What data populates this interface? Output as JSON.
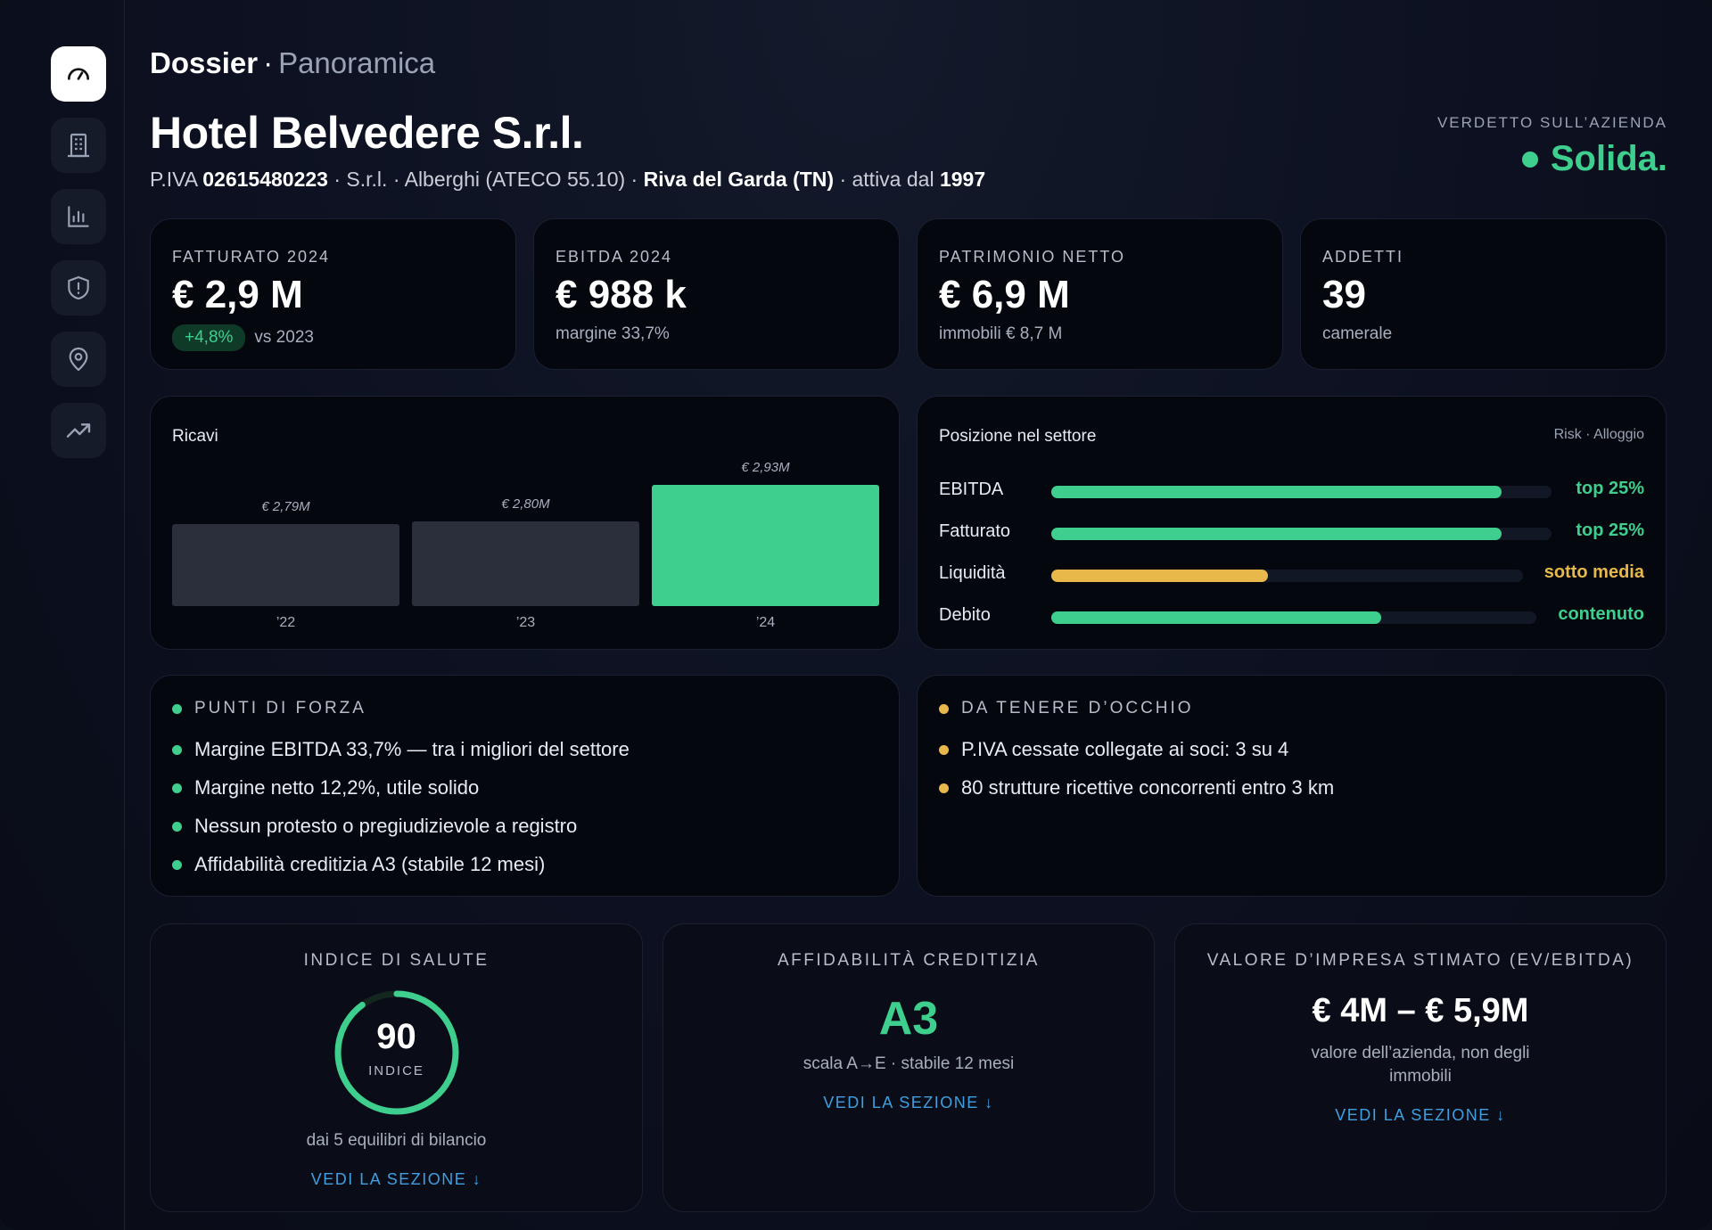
{
  "sidebar": {
    "items": [
      {
        "icon": "gauge-icon",
        "active": true
      },
      {
        "icon": "building-icon",
        "active": false
      },
      {
        "icon": "bar-chart-icon",
        "active": false
      },
      {
        "icon": "shield-icon",
        "active": false
      },
      {
        "icon": "location-pin-icon",
        "active": false
      },
      {
        "icon": "trend-up-icon",
        "active": false
      }
    ]
  },
  "header": {
    "crumb_main": "Dossier",
    "crumb_sep": "·",
    "crumb_sub": "Panoramica",
    "company": "Hotel Belvedere S.r.l.",
    "piva_label": "P.IVA",
    "piva": "02615480223",
    "meta_mid": "· S.r.l. · Alberghi (ATECO 55.10) ·",
    "location": "Riva del Garda (TN)",
    "since_label": "· attiva dal",
    "since": "1997",
    "verdict_label": "VERDETTO SULL’AZIENDA",
    "verdict": "Solida."
  },
  "kpis": [
    {
      "label": "FATTURATO 2024",
      "value": "€ 2,9 M",
      "badge": "+4,8%",
      "sub": "vs 2023"
    },
    {
      "label": "EBITDA 2024",
      "value": "€ 988 k",
      "sub": "margine 33,7%"
    },
    {
      "label": "PATRIMONIO NETTO",
      "value": "€ 6,9 M",
      "sub": "immobili € 8,7 M"
    },
    {
      "label": "ADDETTI",
      "value": "39",
      "sub": "camerale"
    }
  ],
  "chart_data": {
    "type": "bar",
    "title": "Ricavi",
    "categories": [
      "’22",
      "’23",
      "’24"
    ],
    "values": [
      2.79,
      2.8,
      2.93
    ],
    "data_labels": [
      "€ 2,79M",
      "€ 2,80M",
      "€ 2,93M"
    ],
    "colors": [
      "#2b2f3b",
      "#2b2f3b",
      "#3ecf8e"
    ]
  },
  "position": {
    "title": "Posizione nel settore",
    "tag": "Risk · Alloggio",
    "rows": [
      {
        "name": "EBITDA",
        "status": "top 25%",
        "level": 0.9,
        "color": "#3ecf8e"
      },
      {
        "name": "Fatturato",
        "status": "top 25%",
        "level": 0.9,
        "color": "#3ecf8e"
      },
      {
        "name": "Liquidità",
        "status": "sotto media",
        "level": 0.46,
        "color": "#e8b84a"
      },
      {
        "name": "Debito",
        "status": "contenuto",
        "level": 0.68,
        "color": "#3ecf8e"
      }
    ]
  },
  "strengths": {
    "title": "PUNTI DI FORZA",
    "items": [
      "Margine EBITDA 33,7% — tra i migliori del settore",
      "Margine netto 12,2%, utile solido",
      "Nessun protesto o pregiudizievole a registro",
      "Affidabilità creditizia A3 (stabile 12 mesi)"
    ]
  },
  "watch": {
    "title": "DA TENERE D’OCCHIO",
    "items": [
      "P.IVA cessate collegate ai soci: 3 su 4",
      "80 strutture ricettive concorrenti entro 3 km"
    ]
  },
  "health": {
    "title": "INDICE DI SALUTE",
    "score": "90",
    "score_value": 90,
    "score_label": "INDICE",
    "note": "dai 5 equilibri di bilancio",
    "link": "VEDI LA SEZIONE ↓"
  },
  "credit": {
    "title": "AFFIDABILITÀ CREDITIZIA",
    "grade": "A3",
    "note": "scala A→E · stabile 12 mesi",
    "link": "VEDI LA SEZIONE ↓"
  },
  "valuation": {
    "title": "VALORE D’IMPRESA STIMATO (EV/EBITDA)",
    "range": "€ 4M – € 5,9M",
    "note": "valore dell’azienda, non degli immobili",
    "link": "VEDI LA SEZIONE ↓"
  },
  "colors": {
    "green": "#3ecf8e",
    "amber": "#e8b84a",
    "link": "#3f9fe0"
  }
}
